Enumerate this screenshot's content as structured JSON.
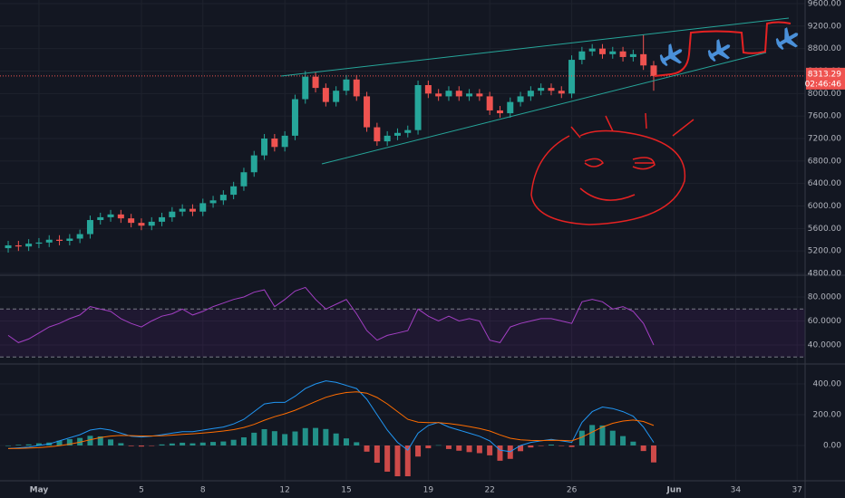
{
  "chart_data": [
    {
      "type": "candlestick",
      "grid": true,
      "up_color": "#26a69a",
      "down_color": "#ef5350",
      "xlim": [
        -1.9,
        37.39
      ],
      "xticks": [
        {
          "value": 0,
          "label": "May"
        },
        5,
        8,
        12,
        15,
        19,
        22,
        26,
        {
          "value": 31,
          "label": "Jun"
        },
        34,
        37
      ],
      "ylim": [
        4784,
        9664
      ],
      "yticks": [
        {
          "value": 9600,
          "label": "9600.00"
        },
        {
          "value": 9200,
          "label": "9200.00"
        },
        {
          "value": 8800,
          "label": "8800.00"
        },
        {
          "value": 8400,
          "label": "8400.00"
        },
        {
          "value": 8000,
          "label": "8000.00"
        },
        {
          "value": 7600,
          "label": "7600.00"
        },
        {
          "value": 7200,
          "label": "7200.00"
        },
        {
          "value": 6800,
          "label": "6800.00"
        },
        {
          "value": 6400,
          "label": "6400.00"
        },
        {
          "value": 6000,
          "label": "6000.00"
        },
        {
          "value": 5600,
          "label": "5600.00"
        },
        {
          "value": 5200,
          "label": "5200.00"
        },
        {
          "value": 4800,
          "label": "4800.00"
        }
      ],
      "x": [
        -1.5,
        -1,
        -0.5,
        0,
        0.5,
        1,
        1.5,
        2,
        2.5,
        3,
        3.5,
        4,
        4.5,
        5,
        5.5,
        6,
        6.5,
        7,
        7.5,
        8,
        8.5,
        9,
        9.5,
        10,
        10.5,
        11,
        11.5,
        12,
        12.5,
        13,
        13.5,
        14,
        14.5,
        15,
        15.5,
        16,
        16.5,
        17,
        17.5,
        18,
        18.5,
        19,
        19.5,
        20,
        20.5,
        21,
        21.5,
        22,
        22.5,
        23,
        23.5,
        24,
        24.5,
        25,
        25.5,
        26,
        26.5,
        27,
        27.5,
        28,
        28.5,
        29,
        29.5,
        30
      ],
      "open": [
        5250,
        5300,
        5280,
        5330,
        5350,
        5400,
        5380,
        5420,
        5500,
        5750,
        5800,
        5850,
        5780,
        5700,
        5650,
        5720,
        5800,
        5900,
        5950,
        5900,
        6050,
        6100,
        6200,
        6350,
        6600,
        6900,
        7200,
        7050,
        7250,
        7900,
        8300,
        8100,
        7850,
        8050,
        8250,
        7950,
        7400,
        7150,
        7250,
        7300,
        7350,
        8150,
        8000,
        7950,
        8050,
        7950,
        8000,
        7950,
        7700,
        7650,
        7850,
        7950,
        8050,
        8100,
        8050,
        8000,
        8600,
        8750,
        8800,
        8700,
        8750,
        8650,
        8700,
        8500
      ],
      "high": [
        5380,
        5380,
        5410,
        5430,
        5480,
        5480,
        5500,
        5580,
        5830,
        5880,
        5930,
        5930,
        5860,
        5780,
        5800,
        5880,
        5980,
        6030,
        6030,
        6130,
        6180,
        6280,
        6430,
        6680,
        6980,
        7280,
        7280,
        7330,
        7980,
        8400,
        8380,
        8180,
        8130,
        8330,
        8330,
        8030,
        7480,
        7330,
        7380,
        7430,
        8230,
        8230,
        8080,
        8130,
        8130,
        8080,
        8080,
        8030,
        7780,
        7930,
        8030,
        8130,
        8180,
        8180,
        8130,
        8680,
        8830,
        8880,
        8880,
        8830,
        8830,
        8780,
        9050,
        8580
      ],
      "low": [
        5170,
        5200,
        5200,
        5250,
        5270,
        5300,
        5300,
        5340,
        5420,
        5670,
        5720,
        5700,
        5620,
        5570,
        5570,
        5640,
        5720,
        5820,
        5820,
        5820,
        5970,
        6020,
        6120,
        6270,
        6520,
        6820,
        6970,
        6970,
        7170,
        7820,
        8020,
        7770,
        7770,
        7970,
        7870,
        7320,
        7070,
        7070,
        7170,
        7220,
        7270,
        7920,
        7870,
        7870,
        7870,
        7870,
        7870,
        7620,
        7570,
        7570,
        7770,
        7870,
        7970,
        7970,
        7920,
        7920,
        8520,
        8670,
        8620,
        8620,
        8570,
        8570,
        8420,
        8050
      ],
      "close": [
        5300,
        5280,
        5330,
        5350,
        5400,
        5380,
        5420,
        5500,
        5750,
        5800,
        5850,
        5780,
        5700,
        5650,
        5720,
        5800,
        5900,
        5950,
        5900,
        6050,
        6100,
        6200,
        6350,
        6600,
        6900,
        7200,
        7050,
        7250,
        7900,
        8300,
        8100,
        7850,
        8050,
        8250,
        7950,
        7400,
        7150,
        7250,
        7300,
        7350,
        8150,
        8000,
        7950,
        8050,
        7950,
        8000,
        7950,
        7700,
        7650,
        7850,
        7950,
        8050,
        8100,
        8050,
        8000,
        8600,
        8750,
        8800,
        8700,
        8750,
        8650,
        8700,
        8500,
        8313.29
      ],
      "countdown": "02:46:46"
    },
    {
      "type": "line",
      "grid": true,
      "band": [
        30,
        70
      ],
      "band_color": "#7b1fa2",
      "color": "#a33fc4",
      "ylim": [
        24.9,
        97.4
      ],
      "yticks": [
        {
          "value": 80,
          "label": "80.0000"
        },
        {
          "value": 60,
          "label": "60.0000"
        },
        {
          "value": 40,
          "label": "40.0000"
        }
      ],
      "values": [
        48,
        42,
        45,
        50,
        55,
        58,
        62,
        65,
        72,
        70,
        68,
        62,
        58,
        55,
        60,
        64,
        66,
        70,
        65,
        68,
        72,
        75,
        78,
        80,
        84,
        86,
        72,
        78,
        85,
        88,
        78,
        70,
        74,
        78,
        66,
        52,
        44,
        48,
        50,
        52,
        70,
        64,
        60,
        64,
        60,
        62,
        60,
        44,
        42,
        55,
        58,
        60,
        62,
        62,
        60,
        58,
        76,
        78,
        76,
        70,
        72,
        68,
        58,
        40
      ]
    },
    {
      "type": "macd",
      "grid": true,
      "ylim": [
        -229.4,
        523.5
      ],
      "yticks": [
        {
          "value": 400,
          "label": "400.00"
        },
        {
          "value": 200,
          "label": "200.00"
        },
        {
          "value": 0,
          "label": "0.00"
        }
      ],
      "series": [
        {
          "kind": "histogram",
          "color": "#26a69a",
          "negative_color": "#ef5350",
          "values": [
            0,
            4,
            7,
            14,
            19,
            31,
            41,
            49,
            63,
            59,
            39,
            15,
            -4,
            -7,
            -2,
            7,
            13,
            18,
            14,
            19,
            23,
            26,
            37,
            53,
            83,
            106,
            93,
            74,
            91,
            113,
            114,
            107,
            78,
            46,
            21,
            -40,
            -112,
            -170,
            -200,
            -200,
            -72,
            -18,
            2,
            -23,
            -34,
            -43,
            -50,
            -64,
            -99,
            -87,
            -37,
            -13,
            -2,
            6,
            -3,
            -10,
            96,
            133,
            130,
            96,
            61,
            25,
            -36,
            -110
          ]
        },
        {
          "kind": "line",
          "color": "#2196f3",
          "values": [
            -20,
            -15,
            -10,
            0,
            10,
            30,
            50,
            70,
            100,
            110,
            100,
            80,
            60,
            55,
            60,
            70,
            80,
            90,
            90,
            100,
            110,
            120,
            140,
            170,
            220,
            270,
            280,
            280,
            320,
            370,
            400,
            420,
            410,
            390,
            370,
            300,
            200,
            100,
            20,
            -30,
            80,
            130,
            150,
            120,
            100,
            80,
            60,
            30,
            -30,
            -40,
            0,
            20,
            30,
            40,
            30,
            20,
            150,
            220,
            250,
            240,
            220,
            190,
            120,
            20
          ]
        },
        {
          "kind": "line",
          "color": "#ff6d00",
          "values": [
            -20,
            -19,
            -17,
            -14,
            -9,
            -1,
            9,
            21,
            37,
            51,
            61,
            65,
            64,
            62,
            62,
            63,
            67,
            72,
            76,
            81,
            87,
            94,
            103,
            117,
            137,
            164,
            187,
            206,
            229,
            257,
            286,
            313,
            332,
            344,
            349,
            340,
            312,
            270,
            220,
            170,
            152,
            148,
            148,
            143,
            134,
            123,
            110,
            94,
            69,
            47,
            37,
            33,
            32,
            34,
            33,
            30,
            54,
            87,
            120,
            144,
            159,
            165,
            156,
            130
          ]
        }
      ]
    }
  ]
}
